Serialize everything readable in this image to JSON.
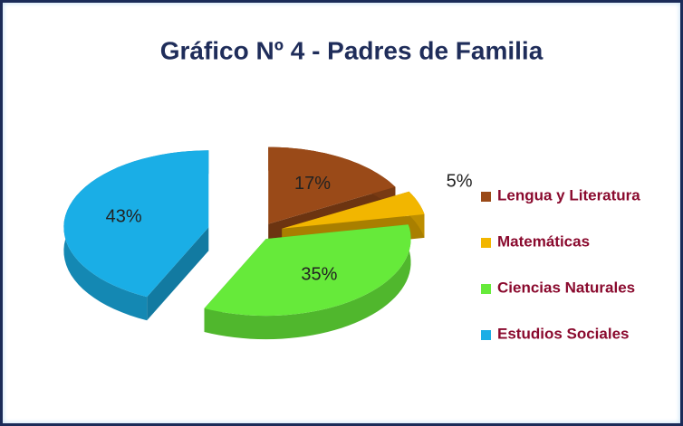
{
  "chart_data": {
    "type": "pie",
    "title": "Gráfico Nº 4 - Padres de Familia",
    "categories": [
      "Lengua y Literatura",
      "Matemáticas",
      "Ciencias Naturales",
      "Estudios Sociales"
    ],
    "values": [
      17,
      5,
      35,
      43
    ],
    "value_labels": [
      "17%",
      "5%",
      "35%",
      "43%"
    ],
    "colors": [
      "#9a4a18",
      "#f2b600",
      "#66ea3a",
      "#1aaee6"
    ],
    "legend": "right"
  }
}
